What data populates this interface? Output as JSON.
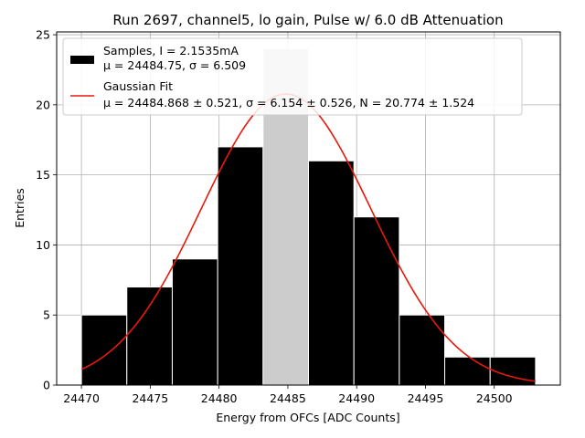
{
  "chart_data": {
    "type": "bar",
    "title": "Run 2697, channel5, lo gain, Pulse w/ 6.0 dB Attenuation",
    "xlabel": "Energy from OFCs [ADC Counts]",
    "ylabel": "Entries",
    "xlim": [
      24468.2,
      24504.8
    ],
    "ylim": [
      0,
      25.2
    ],
    "grid": true,
    "legend_position": "top-left",
    "x_ticks": [
      "24470",
      "24475",
      "24480",
      "24485",
      "24490",
      "24495",
      "24500"
    ],
    "y_ticks": [
      "0",
      "5",
      "10",
      "15",
      "20",
      "25"
    ],
    "bins": [
      {
        "x0": 24470.0,
        "x1": 24473.3,
        "value": 5
      },
      {
        "x0": 24473.3,
        "x1": 24476.6,
        "value": 7
      },
      {
        "x0": 24476.6,
        "x1": 24479.9,
        "value": 9
      },
      {
        "x0": 24479.9,
        "x1": 24483.2,
        "value": 17
      },
      {
        "x0": 24483.2,
        "x1": 24486.5,
        "value": 24
      },
      {
        "x0": 24486.5,
        "x1": 24489.8,
        "value": 16
      },
      {
        "x0": 24489.8,
        "x1": 24493.1,
        "value": 12
      },
      {
        "x0": 24493.1,
        "x1": 24496.4,
        "value": 5
      },
      {
        "x0": 24496.4,
        "x1": 24499.7,
        "value": 2
      },
      {
        "x0": 24499.7,
        "x1": 24503.0,
        "value": 2
      }
    ],
    "highlight_bin": 4,
    "fit": {
      "mu": 24484.868,
      "sigma": 6.154,
      "N": 20.774,
      "x_range": [
        24470.0,
        24503.0
      ]
    },
    "legend": {
      "samples_line1": "Samples, I = 2.1535mA",
      "samples_line2": "μ = 24484.75, σ = 6.509",
      "fit_line1": "Gaussian Fit",
      "fit_line2": "μ = 24484.868 ± 0.521, σ = 6.154 ± 0.526, N = 20.774 ± 1.524"
    },
    "colors": {
      "bar": "#000000",
      "bar_highlight": "#cccccc",
      "bar_edge": "#ffffff",
      "fit": "#e8180c",
      "grid": "#b0b0b0"
    }
  }
}
